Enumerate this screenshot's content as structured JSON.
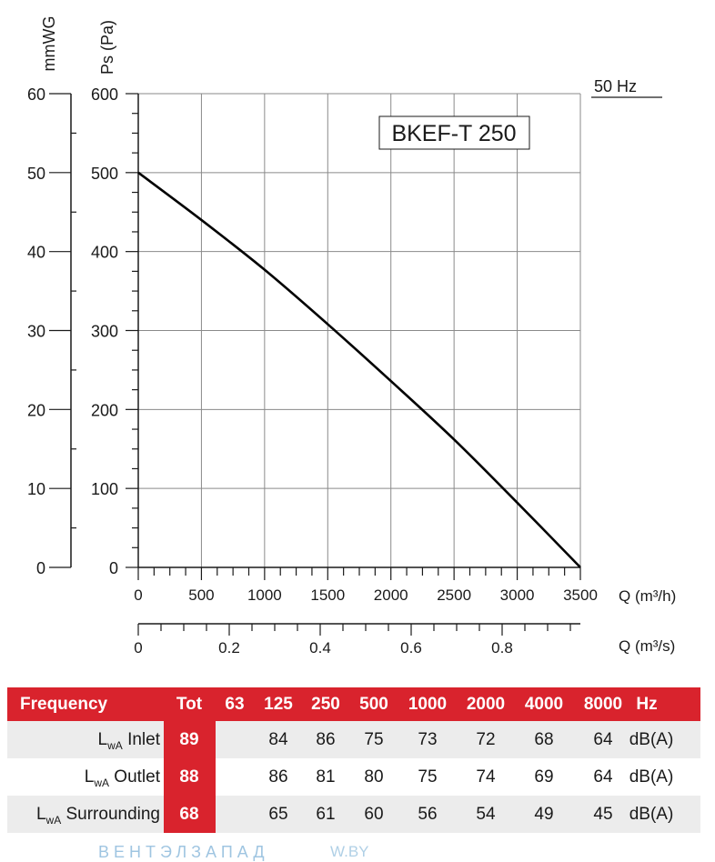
{
  "chart_data": {
    "type": "line",
    "title": "BKEF-T 250",
    "frequency_label": "50 Hz",
    "y_left_label": "mmWG",
    "y_left_ticks": [
      "0",
      "10",
      "20",
      "30",
      "40",
      "50",
      "60"
    ],
    "y_left_range": [
      0,
      60
    ],
    "y_right_label": "Ps (Pa)",
    "y_right_ticks": [
      "0",
      "100",
      "200",
      "300",
      "400",
      "500",
      "600"
    ],
    "y_range": [
      0,
      600
    ],
    "x_label": "Q (m³/h)",
    "x_ticks": [
      "0",
      "500",
      "1000",
      "1500",
      "2000",
      "2500",
      "3000",
      "3500"
    ],
    "x_range": [
      0,
      3500
    ],
    "x2_label": "Q (m³/s)",
    "x2_ticks": [
      "0",
      "0.2",
      "0.4",
      "0.6",
      "0.8"
    ],
    "x2_range": [
      0,
      0.972
    ],
    "grid": true,
    "series": [
      {
        "x": [
          0,
          500,
          1000,
          1500,
          2000,
          2500,
          3000,
          3500
        ],
        "y": [
          500,
          440,
          377,
          308,
          236,
          162,
          82,
          0
        ]
      }
    ]
  },
  "table": {
    "header": {
      "label": "Frequency",
      "cols": [
        "Tot",
        "63",
        "125",
        "250",
        "500",
        "1000",
        "2000",
        "4000",
        "8000",
        "Hz"
      ]
    },
    "rows": [
      {
        "label_pre": "L",
        "label_sub": "wA",
        "label_post": " Inlet",
        "values": [
          "89",
          "",
          "84",
          "86",
          "75",
          "73",
          "72",
          "68",
          "64",
          "dB(A)"
        ]
      },
      {
        "label_pre": "L",
        "label_sub": "wA",
        "label_post": " Outlet",
        "values": [
          "88",
          "",
          "86",
          "81",
          "80",
          "75",
          "74",
          "69",
          "64",
          "dB(A)"
        ]
      },
      {
        "label_pre": "L",
        "label_sub": "wA",
        "label_post": " Surrounding",
        "values": [
          "68",
          "",
          "65",
          "61",
          "60",
          "56",
          "54",
          "49",
          "45",
          "dB(A)"
        ]
      }
    ]
  },
  "watermark": {
    "text": "ВЕНТЭЛЗАПАД",
    "domain": "W.BY"
  }
}
